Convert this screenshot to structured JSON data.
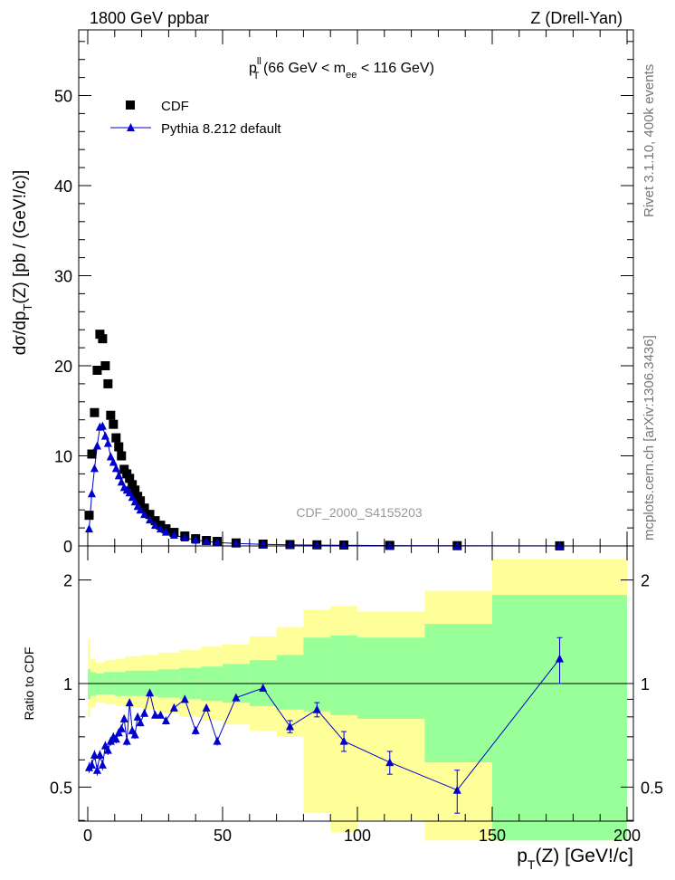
{
  "header": {
    "left": "1800 GeV ppbar",
    "right": "Z (Drell-Yan)"
  },
  "side_labels": {
    "rivet": "Rivet 3.1.10,  400k events",
    "mcplots": "mcplots.cern.ch [arXiv:1306.3436]"
  },
  "chart_data": [
    {
      "type": "scatter",
      "panel": "main",
      "title_main": "p",
      "title_sup": "ll",
      "title_sub": "T",
      "title_rest": " (66 GeV < m",
      "title_sub2": "ee",
      "title_end": " < 116 GeV)",
      "ylabel_prefix": "dσ/dp",
      "ylabel_sub": "T",
      "ylabel_suffix": "(Z) [pb / (GeV!/c)]",
      "xlim": [
        0,
        200
      ],
      "ylim": [
        0,
        57
      ],
      "yticks": [
        0,
        10,
        20,
        30,
        40,
        50
      ],
      "watermark": "CDF_2000_S4155203",
      "legend_position": "top-left",
      "series": [
        {
          "name": "CDF",
          "color": "#000000",
          "marker": "square",
          "x": [
            0.5,
            1.5,
            2.5,
            3.5,
            4.5,
            5.5,
            6.5,
            7.5,
            8.5,
            9.5,
            10.5,
            11.5,
            12.5,
            13.5,
            14.5,
            15.5,
            16.5,
            17.5,
            18.5,
            19.5,
            21,
            23,
            25,
            27,
            29,
            32,
            36,
            40,
            44,
            48,
            55,
            65,
            75,
            85,
            95,
            112,
            137,
            175
          ],
          "y": [
            3.4,
            10.2,
            14.8,
            19.5,
            23.5,
            23.0,
            20.0,
            18.0,
            14.5,
            13.5,
            12.0,
            11.0,
            10.0,
            8.5,
            8.0,
            7.5,
            6.8,
            6.2,
            5.5,
            5.0,
            4.2,
            3.5,
            2.8,
            2.3,
            1.9,
            1.5,
            1.1,
            0.8,
            0.6,
            0.5,
            0.33,
            0.2,
            0.15,
            0.12,
            0.1,
            0.06,
            0.03,
            0.01
          ]
        },
        {
          "name": "Pythia 8.212 default",
          "color": "#0000cc",
          "marker": "triangle",
          "x": [
            0.5,
            1.5,
            2.5,
            3.5,
            4.5,
            5.5,
            6.5,
            7.5,
            8.5,
            9.5,
            10.5,
            11.5,
            12.5,
            13.5,
            14.5,
            15.5,
            16.5,
            17.5,
            18.5,
            19.5,
            21,
            23,
            25,
            27,
            29,
            32,
            36,
            40,
            44,
            48,
            55,
            65,
            75,
            85,
            95,
            112,
            137,
            175
          ],
          "y": [
            1.9,
            5.8,
            8.6,
            11.1,
            13.2,
            13.3,
            12.2,
            11.4,
            9.9,
            9.3,
            8.6,
            7.8,
            7.1,
            6.5,
            6.2,
            5.9,
            5.4,
            4.9,
            4.4,
            4.0,
            3.5,
            2.9,
            2.3,
            1.9,
            1.55,
            1.2,
            0.9,
            0.65,
            0.5,
            0.38,
            0.27,
            0.17,
            0.12,
            0.09,
            0.07,
            0.04,
            0.02,
            0.01
          ]
        }
      ]
    },
    {
      "type": "line",
      "panel": "ratio",
      "ylabel": "Ratio to CDF",
      "xlabel_prefix": "p",
      "xlabel_sub": "T",
      "xlabel_suffix": "(Z) [GeV!/c]",
      "xlim": [
        0,
        200
      ],
      "ylim": [
        0.35,
        2.3
      ],
      "xticks": [
        0,
        50,
        100,
        150,
        200
      ],
      "yticks": [
        0.5,
        1,
        2
      ],
      "reference_line": 1,
      "bands": [
        {
          "x0": 0,
          "x1": 1,
          "green": [
            0.9,
            1.1
          ],
          "yellow": [
            0.8,
            1.35
          ]
        },
        {
          "x0": 1,
          "x1": 3,
          "green": [
            0.92,
            1.08
          ],
          "yellow": [
            0.85,
            1.18
          ]
        },
        {
          "x0": 3,
          "x1": 6,
          "green": [
            0.93,
            1.07
          ],
          "yellow": [
            0.88,
            1.15
          ]
        },
        {
          "x0": 6,
          "x1": 10,
          "green": [
            0.93,
            1.08
          ],
          "yellow": [
            0.87,
            1.17
          ]
        },
        {
          "x0": 10,
          "x1": 14,
          "green": [
            0.92,
            1.08
          ],
          "yellow": [
            0.86,
            1.18
          ]
        },
        {
          "x0": 14,
          "x1": 20,
          "green": [
            0.92,
            1.09
          ],
          "yellow": [
            0.85,
            1.2
          ]
        },
        {
          "x0": 20,
          "x1": 26,
          "green": [
            0.92,
            1.09
          ],
          "yellow": [
            0.84,
            1.21
          ]
        },
        {
          "x0": 26,
          "x1": 34,
          "green": [
            0.91,
            1.1
          ],
          "yellow": [
            0.82,
            1.23
          ]
        },
        {
          "x0": 34,
          "x1": 42,
          "green": [
            0.9,
            1.11
          ],
          "yellow": [
            0.8,
            1.25
          ]
        },
        {
          "x0": 42,
          "x1": 50,
          "green": [
            0.89,
            1.12
          ],
          "yellow": [
            0.78,
            1.28
          ]
        },
        {
          "x0": 50,
          "x1": 60,
          "green": [
            0.88,
            1.14
          ],
          "yellow": [
            0.76,
            1.3
          ]
        },
        {
          "x0": 60,
          "x1": 70,
          "green": [
            0.86,
            1.17
          ],
          "yellow": [
            0.73,
            1.37
          ]
        },
        {
          "x0": 70,
          "x1": 80,
          "green": [
            0.84,
            1.21
          ],
          "yellow": [
            0.7,
            1.46
          ]
        },
        {
          "x0": 80,
          "x1": 90,
          "green": [
            0.83,
            1.36
          ],
          "yellow": [
            0.42,
            1.64
          ]
        },
        {
          "x0": 90,
          "x1": 100,
          "green": [
            0.81,
            1.38
          ],
          "yellow": [
            0.37,
            1.68
          ]
        },
        {
          "x0": 100,
          "x1": 125,
          "green": [
            0.79,
            1.36
          ],
          "yellow": [
            0.4,
            1.62
          ]
        },
        {
          "x0": 125,
          "x1": 150,
          "green": [
            0.59,
            1.49
          ],
          "yellow": [
            0.35,
            1.86
          ]
        },
        {
          "x0": 150,
          "x1": 200,
          "green": [
            0.35,
            1.81
          ],
          "yellow": [
            0.35,
            2.3
          ]
        }
      ],
      "series": [
        {
          "name": "Pythia 8.212 default",
          "color": "#0000cc",
          "x": [
            0.5,
            1.5,
            2.5,
            3.5,
            4.5,
            5.5,
            6.5,
            7.5,
            8.5,
            9.5,
            10.5,
            11.5,
            12.5,
            13.5,
            14.5,
            15.5,
            16.5,
            17.5,
            18.5,
            19.5,
            21,
            23,
            25,
            27,
            29,
            32,
            36,
            40,
            44,
            48,
            55,
            65,
            75,
            85,
            95,
            112,
            137,
            175
          ],
          "y": [
            0.57,
            0.58,
            0.62,
            0.56,
            0.62,
            0.58,
            0.66,
            0.64,
            0.68,
            0.7,
            0.69,
            0.72,
            0.74,
            0.79,
            0.68,
            0.88,
            0.73,
            0.71,
            0.8,
            0.77,
            0.82,
            0.94,
            0.81,
            0.81,
            0.78,
            0.85,
            0.9,
            0.73,
            0.85,
            0.68,
            0.91,
            0.97,
            0.75,
            0.84,
            0.68,
            0.59,
            0.49,
            1.18
          ],
          "err": [
            0.02,
            0.02,
            0.02,
            0.02,
            0.02,
            0.02,
            0.02,
            0.02,
            0.02,
            0.02,
            0.02,
            0.02,
            0.02,
            0.02,
            0.02,
            0.02,
            0.02,
            0.02,
            0.02,
            0.02,
            0.02,
            0.02,
            0.02,
            0.02,
            0.02,
            0.02,
            0.02,
            0.02,
            0.02,
            0.02,
            0.02,
            0.02,
            0.03,
            0.04,
            0.045,
            0.045,
            0.07,
            0.18
          ]
        }
      ]
    }
  ]
}
